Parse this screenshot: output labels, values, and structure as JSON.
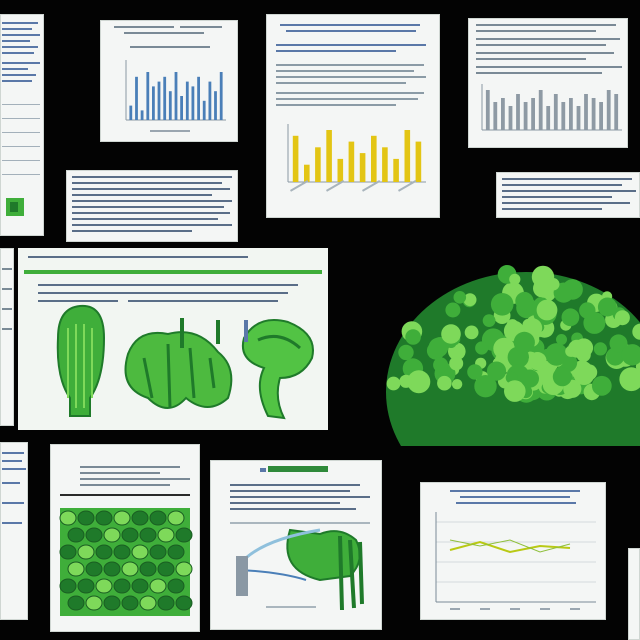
{
  "scene": {
    "description_visible_text": "",
    "colors": {
      "background": "#030303",
      "paper": "#f4f6f5",
      "text_gray": "#7a8a96",
      "text_blue": "#5a78a8",
      "bar_blue": "#4a7fb8",
      "bar_yellow": "#e3c514",
      "bar_gray": "#8e9aa4",
      "green_dark": "#1f7a2a",
      "green_mid": "#3fae3a",
      "green_light": "#7ed95a"
    }
  },
  "documents": [
    {
      "kind": "text-page"
    },
    {
      "kind": "bar-chart-blue",
      "chart_data": {
        "type": "bar",
        "values": [
          3,
          9,
          2,
          10,
          7,
          8,
          9,
          6,
          10,
          5,
          8,
          7,
          9,
          4,
          8,
          6,
          10
        ]
      }
    },
    {
      "kind": "bar-chart-yellow",
      "chart_data": {
        "type": "bar",
        "values": [
          8,
          3,
          6,
          9,
          4,
          7,
          5,
          8,
          6,
          4,
          9,
          7
        ]
      }
    },
    {
      "kind": "bar-chart-gray",
      "chart_data": {
        "type": "bar",
        "values": [
          10,
          7,
          8,
          6,
          9,
          7,
          8,
          10,
          6,
          9,
          7,
          8,
          6,
          9,
          8,
          7,
          10,
          9
        ]
      }
    },
    {
      "kind": "text-block"
    },
    {
      "kind": "text-block-small"
    },
    {
      "kind": "green-anatomy-figure"
    },
    {
      "kind": "green-cell-texture"
    },
    {
      "kind": "green-anatomy-small"
    },
    {
      "kind": "line-chart"
    }
  ]
}
